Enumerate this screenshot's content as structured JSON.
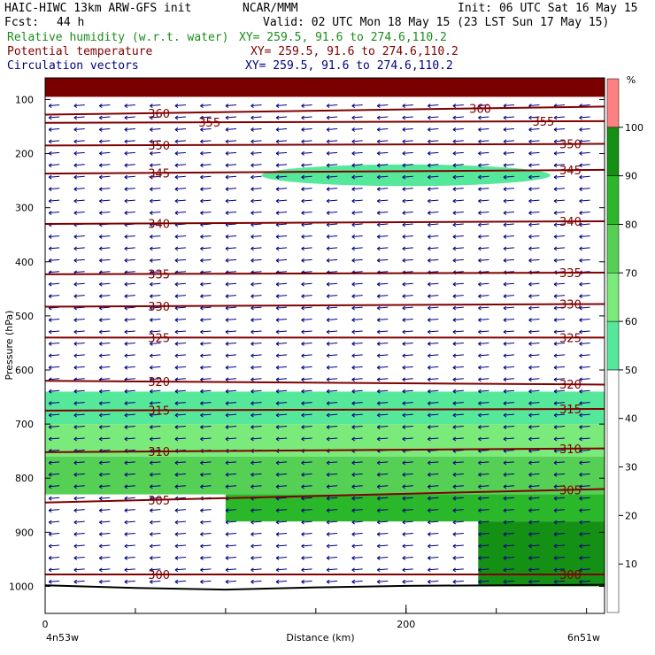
{
  "header": {
    "model_line": "HAIC-HIWC 13km ARW-GFS init",
    "org": "NCAR/MMM",
    "init": "Init: 06 UTC Sat 16 May 15",
    "fcst_label": "Fcst:",
    "fcst_value": "44 h",
    "valid": "Valid: 02 UTC Mon 18 May 15 (23 LST Sun 17 May 15)",
    "fields": [
      {
        "name": "Relative humidity (w.r.t. water)",
        "xy": "XY= 259.5, 91.6 to 274.6,110.2",
        "color": "#1a8c1a"
      },
      {
        "name": "Potential temperature",
        "xy": "XY= 259.5, 91.6 to 274.6,110.2",
        "color": "#800000"
      },
      {
        "name": "Circulation vectors",
        "xy": "XY= 259.5, 91.6 to 274.6,110.2",
        "color": "#000080"
      }
    ]
  },
  "chart_data": {
    "type": "cross-section",
    "xlabel": "Distance (km)",
    "ylabel": "Pressure (hPa)",
    "xlim": [
      0,
      310
    ],
    "ylim": [
      1050,
      60
    ],
    "x_ticks": [
      0,
      200
    ],
    "y_ticks": [
      100,
      200,
      300,
      400,
      500,
      600,
      700,
      800,
      900,
      1000
    ],
    "left_endpoint": "4n53w",
    "right_endpoint": "6n51w",
    "colorbar": {
      "unit": "%",
      "ticks": [
        10,
        20,
        30,
        40,
        50,
        60,
        70,
        80,
        90,
        100
      ],
      "bins": [
        {
          "from": 0,
          "to": 50,
          "color": "#ffffff"
        },
        {
          "from": 50,
          "to": 60,
          "color": "#55e89a"
        },
        {
          "from": 60,
          "to": 70,
          "color": "#7aea7a"
        },
        {
          "from": 70,
          "to": 80,
          "color": "#55d055"
        },
        {
          "from": 80,
          "to": 90,
          "color": "#2ab82a"
        },
        {
          "from": 90,
          "to": 100,
          "color": "#149014"
        },
        {
          "from": 100,
          "to": 110,
          "color": "#ff8080"
        }
      ]
    },
    "theta_isolines": [
      {
        "value": 300,
        "p_left": 978,
        "p_right": 978,
        "labels": [
          {
            "text": "300",
            "x": 57
          },
          {
            "text": "300",
            "x": 285
          }
        ]
      },
      {
        "value": 305,
        "p_left": 845,
        "p_right": 820,
        "labels": [
          {
            "text": "305",
            "x": 57
          },
          {
            "text": "305",
            "x": 285
          }
        ]
      },
      {
        "value": 310,
        "p_left": 752,
        "p_right": 745,
        "labels": [
          {
            "text": "310",
            "x": 57
          },
          {
            "text": "310",
            "x": 285
          }
        ]
      },
      {
        "value": 315,
        "p_left": 675,
        "p_right": 672,
        "labels": [
          {
            "text": "315",
            "x": 57
          },
          {
            "text": "315",
            "x": 285
          }
        ]
      },
      {
        "value": 320,
        "p_left": 620,
        "p_right": 627,
        "labels": [
          {
            "text": "320",
            "x": 57
          },
          {
            "text": "320",
            "x": 285
          }
        ]
      },
      {
        "value": 325,
        "p_left": 540,
        "p_right": 540,
        "labels": [
          {
            "text": "325",
            "x": 57
          },
          {
            "text": "325",
            "x": 285
          }
        ]
      },
      {
        "value": 330,
        "p_left": 483,
        "p_right": 478,
        "labels": [
          {
            "text": "330",
            "x": 57
          },
          {
            "text": "330",
            "x": 285
          }
        ]
      },
      {
        "value": 335,
        "p_left": 423,
        "p_right": 420,
        "labels": [
          {
            "text": "335",
            "x": 57
          },
          {
            "text": "335",
            "x": 285
          }
        ]
      },
      {
        "value": 340,
        "p_left": 330,
        "p_right": 325,
        "labels": [
          {
            "text": "340",
            "x": 57
          },
          {
            "text": "340",
            "x": 285
          }
        ]
      },
      {
        "value": 345,
        "p_left": 237,
        "p_right": 230,
        "labels": [
          {
            "text": "345",
            "x": 57
          },
          {
            "text": "345",
            "x": 285
          }
        ]
      },
      {
        "value": 350,
        "p_left": 185,
        "p_right": 182,
        "labels": [
          {
            "text": "350",
            "x": 57
          },
          {
            "text": "350",
            "x": 285
          }
        ]
      },
      {
        "value": 355,
        "p_left": 143,
        "p_right": 140,
        "labels": [
          {
            "text": "355",
            "x": 85
          },
          {
            "text": "355",
            "x": 270
          }
        ]
      },
      {
        "value": 360,
        "p_left": 128,
        "p_right": 113,
        "labels": [
          {
            "text": "360",
            "x": 57
          },
          {
            "text": "360",
            "x": 235
          }
        ]
      }
    ],
    "rh_regions": [
      {
        "bin": "100-110",
        "top_p": 60,
        "bottom_p": 95
      },
      {
        "bin": "50-60",
        "p_range": [
          220,
          260
        ],
        "x_range": [
          120,
          280
        ]
      },
      {
        "bin": "50-60",
        "p_range": [
          640,
          700
        ],
        "x_range": [
          0,
          310
        ]
      },
      {
        "bin": "60-70",
        "p_range": [
          700,
          760
        ],
        "x_range": [
          0,
          310
        ]
      },
      {
        "bin": "70-80",
        "p_range": [
          760,
          830
        ],
        "x_range": [
          0,
          310
        ]
      },
      {
        "bin": "80-90",
        "p_range": [
          830,
          880
        ],
        "x_range": [
          100,
          310
        ]
      },
      {
        "bin": "90-100",
        "p_range": [
          880,
          1000
        ],
        "x_range": [
          240,
          310
        ]
      }
    ]
  }
}
